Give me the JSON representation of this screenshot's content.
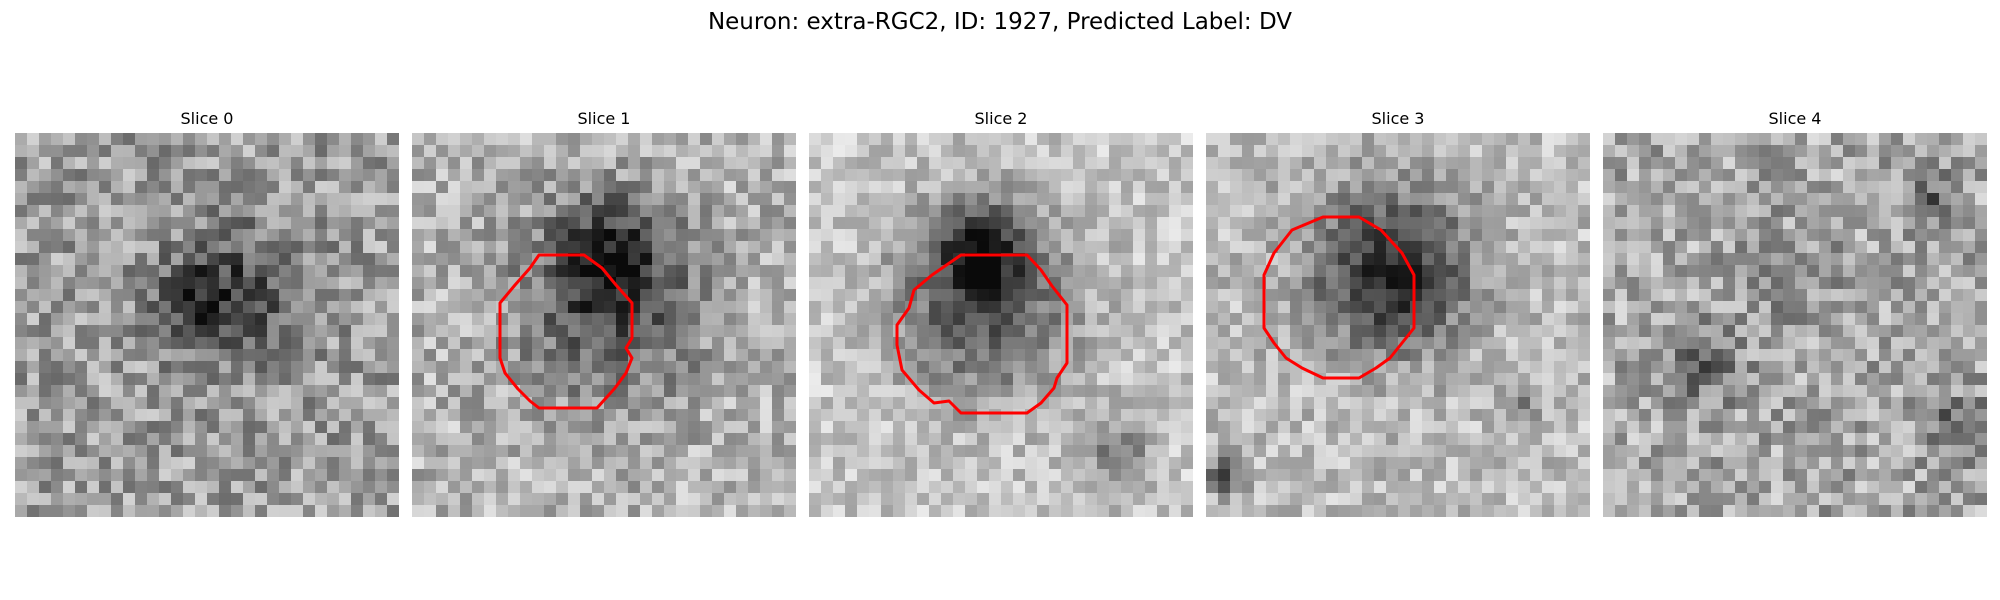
{
  "figure": {
    "title": "Neuron: extra-RGC2, ID: 1927, Predicted Label: DV"
  },
  "panels": [
    {
      "title": "Slice 0",
      "has_contour": false
    },
    {
      "title": "Slice 1",
      "has_contour": true
    },
    {
      "title": "Slice 2",
      "has_contour": true
    },
    {
      "title": "Slice 3",
      "has_contour": true
    },
    {
      "title": "Slice 4",
      "has_contour": false
    }
  ],
  "colors": {
    "contour": "#ff0000",
    "background": "#ffffff",
    "colormap": "grayscale"
  }
}
